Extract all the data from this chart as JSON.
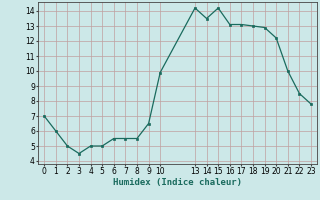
{
  "x": [
    0,
    1,
    2,
    3,
    4,
    5,
    6,
    7,
    8,
    9,
    10,
    13,
    14,
    15,
    16,
    17,
    18,
    19,
    20,
    21,
    22,
    23
  ],
  "y": [
    7.0,
    6.0,
    5.0,
    4.5,
    5.0,
    5.0,
    5.5,
    5.5,
    5.5,
    6.5,
    9.9,
    14.2,
    13.5,
    14.2,
    13.1,
    13.1,
    13.0,
    12.9,
    12.2,
    10.0,
    8.5,
    7.8
  ],
  "line_color": "#1a6b5e",
  "marker_color": "#1a6b5e",
  "bg_color": "#cce8e8",
  "grid_color": "#c0a0a0",
  "xlabel": "Humidex (Indice chaleur)",
  "xlim": [
    -0.5,
    23.5
  ],
  "ylim": [
    3.8,
    14.6
  ],
  "yticks": [
    4,
    5,
    6,
    7,
    8,
    9,
    10,
    11,
    12,
    13,
    14
  ],
  "xticks": [
    0,
    1,
    2,
    3,
    4,
    5,
    6,
    7,
    8,
    9,
    10,
    13,
    14,
    15,
    16,
    17,
    18,
    19,
    20,
    21,
    22,
    23
  ],
  "font_size_label": 6.5,
  "font_size_tick": 5.5
}
